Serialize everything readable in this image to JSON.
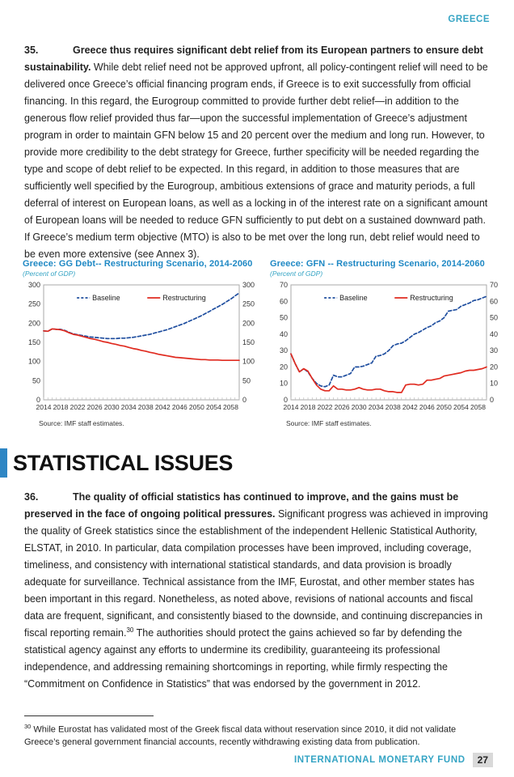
{
  "page": {
    "header": "GREECE",
    "footer": {
      "org": "INTERNATIONAL MONETARY FUND",
      "page_number": "27"
    }
  },
  "para35": {
    "number": "35.",
    "lead": "Greece thus requires significant debt relief from its European partners to ensure debt sustainability.",
    "body": " While debt relief need not be approved upfront, all policy-contingent relief will need to be delivered once Greece’s official financing program ends, if Greece is to exit successfully from official financing. In this regard, the Eurogroup committed to provide further debt relief—in addition to the generous flow relief provided thus far—upon the successful implementation of Greece’s adjustment program in order to maintain GFN below 15 and 20 percent over the medium and long run. However, to provide more credibility to the debt strategy for Greece, further specificity will be needed regarding the type and scope of debt relief to be expected. In this regard, in addition to those measures that are sufficiently well specified by the Eurogroup, ambitious extensions of grace and maturity periods, a full deferral of interest on European loans, as well as a locking in of the interest rate on a significant amount of European loans will be needed to reduce GFN sufficiently to put debt on a sustained downward path. If Greece’s medium term objective (MTO) is also to be met over the long run, debt relief would need to be even more extensive (see Annex 3)."
  },
  "section": {
    "heading": "STATISTICAL ISSUES"
  },
  "para36": {
    "number": "36.",
    "lead": "The quality of official statistics has continued to improve, and the gains must be preserved in the face of ongoing political pressures.",
    "body_before_sup": " Significant progress was achieved in improving the quality of Greek statistics since the establishment of the independent Hellenic Statistical Authority, ELSTAT, in 2010. In particular, data compilation processes have been improved, including coverage, timeliness, and consistency with international statistical standards, and data provision is broadly adequate for surveillance. Technical assistance from the IMF, Eurostat, and other member states has been important in this regard. Nonetheless, as noted above, revisions of national accounts and fiscal data are frequent, significant, and consistently biased to the downside, and continuing discrepancies in fiscal reporting remain.",
    "sup": "30",
    "body_after_sup": " The authorities should protect the gains achieved so far by defending the statistical agency against any efforts to undermine its credibility, guaranteeing its professional independence, and addressing remaining shortcomings in reporting, while firmly respecting the “Commitment on Confidence in Statistics” that was endorsed by the government in 2012."
  },
  "footnote": {
    "sup": "30",
    "text": " While Eurostat has validated most of the Greek fiscal data without reservation since 2010, it did not validate Greece’s general government financial accounts, recently withdrawing existing data from publication."
  },
  "colors": {
    "accent_blue": "#35a4c4",
    "chart_title_blue": "#1e88c4",
    "heading_bar_blue": "#2e86c4",
    "baseline_line": "#1f4e9f",
    "restructuring_line": "#e02b20"
  },
  "chart_data": [
    {
      "type": "line",
      "title": "Greece: GG Debt-- Restructuring Scenario, 2014-2060",
      "subtitle": "(Percent of GDP)",
      "source": "Source: IMF staff estimates.",
      "ylim": [
        0,
        300
      ],
      "ytick_step": 50,
      "grid": false,
      "legend_position": "top-inside",
      "x": [
        2014,
        2015,
        2016,
        2017,
        2018,
        2019,
        2020,
        2021,
        2022,
        2023,
        2024,
        2025,
        2026,
        2027,
        2028,
        2029,
        2030,
        2031,
        2032,
        2033,
        2034,
        2035,
        2036,
        2037,
        2038,
        2039,
        2040,
        2041,
        2042,
        2043,
        2044,
        2045,
        2046,
        2047,
        2048,
        2049,
        2050,
        2051,
        2052,
        2053,
        2054,
        2055,
        2056,
        2057,
        2058,
        2059,
        2060
      ],
      "xticks": [
        2014,
        2018,
        2022,
        2026,
        2030,
        2034,
        2038,
        2042,
        2046,
        2050,
        2054,
        2058
      ],
      "series": [
        {
          "name": "Baseline",
          "color": "#1f4e9f",
          "dash": true,
          "values": [
            180,
            179,
            185,
            184,
            184,
            181,
            176,
            172,
            170,
            168,
            166,
            164,
            163,
            162,
            161,
            160,
            160,
            160,
            161,
            161,
            162,
            163,
            165,
            167,
            169,
            171,
            174,
            177,
            180,
            183,
            187,
            191,
            195,
            199,
            204,
            209,
            214,
            219,
            225,
            231,
            237,
            243,
            249,
            256,
            263,
            271,
            279
          ]
        },
        {
          "name": "Restructuring",
          "color": "#e02b20",
          "dash": false,
          "values": [
            180,
            179,
            185,
            184,
            183,
            180,
            175,
            171,
            169,
            166,
            163,
            160,
            158,
            155,
            152,
            150,
            147,
            145,
            142,
            140,
            137,
            134,
            132,
            129,
            127,
            124,
            122,
            119,
            117,
            115,
            113,
            111,
            110,
            109,
            108,
            107,
            106,
            105,
            105,
            104,
            104,
            104,
            103,
            103,
            103,
            103,
            103
          ]
        }
      ]
    },
    {
      "type": "line",
      "title": "Greece: GFN -- Restructuring Scenario, 2014-2060",
      "subtitle": "(Percent of GDP)",
      "source": "Source: IMF staff estimates.",
      "ylim": [
        0,
        70
      ],
      "ytick_step": 10,
      "grid": false,
      "legend_position": "top-inside",
      "x": [
        2014,
        2015,
        2016,
        2017,
        2018,
        2019,
        2020,
        2021,
        2022,
        2023,
        2024,
        2025,
        2026,
        2027,
        2028,
        2029,
        2030,
        2031,
        2032,
        2033,
        2034,
        2035,
        2036,
        2037,
        2038,
        2039,
        2040,
        2041,
        2042,
        2043,
        2044,
        2045,
        2046,
        2047,
        2048,
        2049,
        2050,
        2051,
        2052,
        2053,
        2054,
        2055,
        2056,
        2057,
        2058,
        2059,
        2060
      ],
      "xticks": [
        2014,
        2018,
        2022,
        2026,
        2030,
        2034,
        2038,
        2042,
        2046,
        2050,
        2054,
        2058
      ],
      "series": [
        {
          "name": "Baseline",
          "color": "#1f4e9f",
          "dash": true,
          "values": [
            28,
            22,
            17,
            19,
            17,
            13,
            10,
            8.5,
            8,
            9,
            15,
            14,
            14,
            15,
            16,
            20,
            20,
            20.5,
            21.5,
            22.5,
            26.5,
            27,
            28,
            30,
            33,
            34,
            34.5,
            36,
            38,
            40,
            41,
            42.5,
            44,
            45,
            47,
            48,
            50,
            54,
            54.5,
            55,
            57,
            58,
            59,
            60.5,
            61,
            62,
            63
          ]
        },
        {
          "name": "Restructuring",
          "color": "#e02b20",
          "dash": false,
          "values": [
            28,
            22,
            17,
            19,
            17.5,
            13,
            9,
            6.5,
            5.5,
            5.5,
            8.5,
            6.5,
            6.5,
            6,
            6,
            6.5,
            7.5,
            6.5,
            6,
            6,
            6.5,
            6.5,
            5.5,
            5,
            5,
            4.5,
            4.5,
            9,
            9.5,
            9.5,
            9,
            9.5,
            12,
            12,
            12.5,
            13,
            14.5,
            15,
            15.5,
            16,
            16.5,
            17.5,
            18,
            18,
            18.5,
            19,
            20
          ]
        }
      ]
    }
  ]
}
